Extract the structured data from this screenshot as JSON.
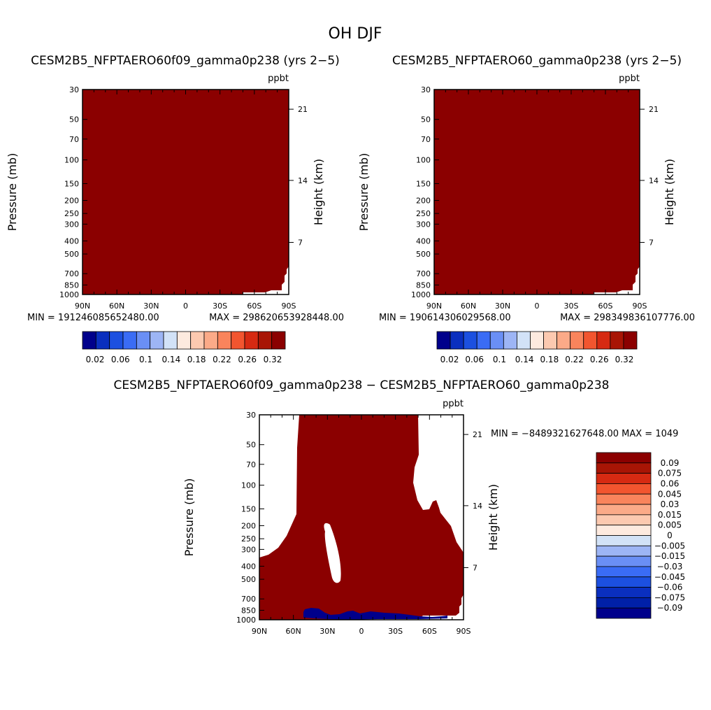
{
  "figure": {
    "title": "OH DJF"
  },
  "chart_data": [
    {
      "type": "heatmap",
      "title": "CESM2B5_NFPTAERO60f09_gamma0p238 (yrs 2−5)",
      "units": "ppbt",
      "xlabel": "",
      "ylabel": "Pressure (mb)",
      "y2label": "Height (km)",
      "xticks": [
        "90N",
        "60N",
        "30N",
        "0",
        "30S",
        "60S",
        "90S"
      ],
      "xtick_values": [
        90,
        60,
        30,
        0,
        -30,
        -60,
        -90
      ],
      "yticks": [
        30,
        50,
        70,
        100,
        150,
        200,
        250,
        300,
        400,
        500,
        700,
        850,
        1000
      ],
      "y2ticks": [
        {
          "label": "21",
          "pressure": 42
        },
        {
          "label": "14",
          "pressure": 142
        },
        {
          "label": "7",
          "pressure": 410
        }
      ],
      "ylim": [
        1000,
        30
      ],
      "xlim": [
        90,
        -90
      ],
      "min_text": "MIN = 191246085652480.00",
      "max_text": "MAX = 298620653928448.00",
      "fill_color": "#8b0000",
      "colorbar": {
        "orientation": "horizontal",
        "labels": [
          "0.02",
          "0.06",
          "0.1",
          "0.14",
          "0.18",
          "0.22",
          "0.26",
          "0.32"
        ],
        "colors": [
          "#00008b",
          "#0a2fbf",
          "#1c50e0",
          "#3a6cf5",
          "#6a8ff5",
          "#9db5f5",
          "#d2e2f7",
          "#fdeadf",
          "#fcc9b0",
          "#fbaa88",
          "#f9845c",
          "#f2552f",
          "#d62a12",
          "#a81505",
          "#8b0000"
        ]
      }
    },
    {
      "type": "heatmap",
      "title": "CESM2B5_NFPTAERO60_gamma0p238 (yrs 2−5)",
      "units": "ppbt",
      "xlabel": "",
      "ylabel": "Pressure (mb)",
      "y2label": "Height (km)",
      "xticks": [
        "90N",
        "60N",
        "30N",
        "0",
        "30S",
        "60S",
        "90S"
      ],
      "xtick_values": [
        90,
        60,
        30,
        0,
        -30,
        -60,
        -90
      ],
      "yticks": [
        30,
        50,
        70,
        100,
        150,
        200,
        250,
        300,
        400,
        500,
        700,
        850,
        1000
      ],
      "y2ticks": [
        {
          "label": "21",
          "pressure": 42
        },
        {
          "label": "14",
          "pressure": 142
        },
        {
          "label": "7",
          "pressure": 410
        }
      ],
      "ylim": [
        1000,
        30
      ],
      "xlim": [
        90,
        -90
      ],
      "min_text": "MIN = 190614306029568.00",
      "max_text": "MAX = 298349836107776.00",
      "fill_color": "#8b0000",
      "colorbar": {
        "orientation": "horizontal",
        "labels": [
          "0.02",
          "0.06",
          "0.1",
          "0.14",
          "0.18",
          "0.22",
          "0.26",
          "0.32"
        ],
        "colors": [
          "#00008b",
          "#0a2fbf",
          "#1c50e0",
          "#3a6cf5",
          "#6a8ff5",
          "#9db5f5",
          "#d2e2f7",
          "#fdeadf",
          "#fcc9b0",
          "#fbaa88",
          "#f9845c",
          "#f2552f",
          "#d62a12",
          "#a81505",
          "#8b0000"
        ]
      }
    },
    {
      "type": "heatmap",
      "title": "CESM2B5_NFPTAERO60f09_gamma0p238 − CESM2B5_NFPTAERO60_gamma0p238",
      "units": "ppbt",
      "xlabel": "",
      "ylabel": "Pressure (mb)",
      "y2label": "Height (km)",
      "xticks": [
        "90N",
        "60N",
        "30N",
        "0",
        "30S",
        "60S",
        "90S"
      ],
      "xtick_values": [
        90,
        60,
        30,
        0,
        -30,
        -60,
        -90
      ],
      "yticks": [
        30,
        50,
        70,
        100,
        150,
        200,
        250,
        300,
        400,
        500,
        700,
        850,
        1000
      ],
      "y2ticks": [
        {
          "label": "21",
          "pressure": 42
        },
        {
          "label": "14",
          "pressure": 142
        },
        {
          "label": "7",
          "pressure": 410
        }
      ],
      "ylim": [
        1000,
        30
      ],
      "xlim": [
        90,
        -90
      ],
      "stats_text": "MIN = −8489321627648.00   MAX = 1049",
      "positive_color": "#8b0000",
      "negative_color": "#00008b",
      "colorbar": {
        "orientation": "vertical",
        "labels": [
          "0.09",
          "0.075",
          "0.06",
          "0.045",
          "0.03",
          "0.015",
          "0.005",
          "0",
          "−0.005",
          "−0.015",
          "−0.03",
          "−0.045",
          "−0.06",
          "−0.075",
          "−0.09"
        ],
        "colors": [
          "#8b0000",
          "#a81505",
          "#d62a12",
          "#f2552f",
          "#f9845c",
          "#fbaa88",
          "#fcc9b0",
          "#fdeadf",
          "#d2e2f7",
          "#9db5f5",
          "#6a8ff5",
          "#3a6cf5",
          "#1c50e0",
          "#0a2fbf",
          "#0020a8",
          "#00008b"
        ]
      }
    }
  ]
}
